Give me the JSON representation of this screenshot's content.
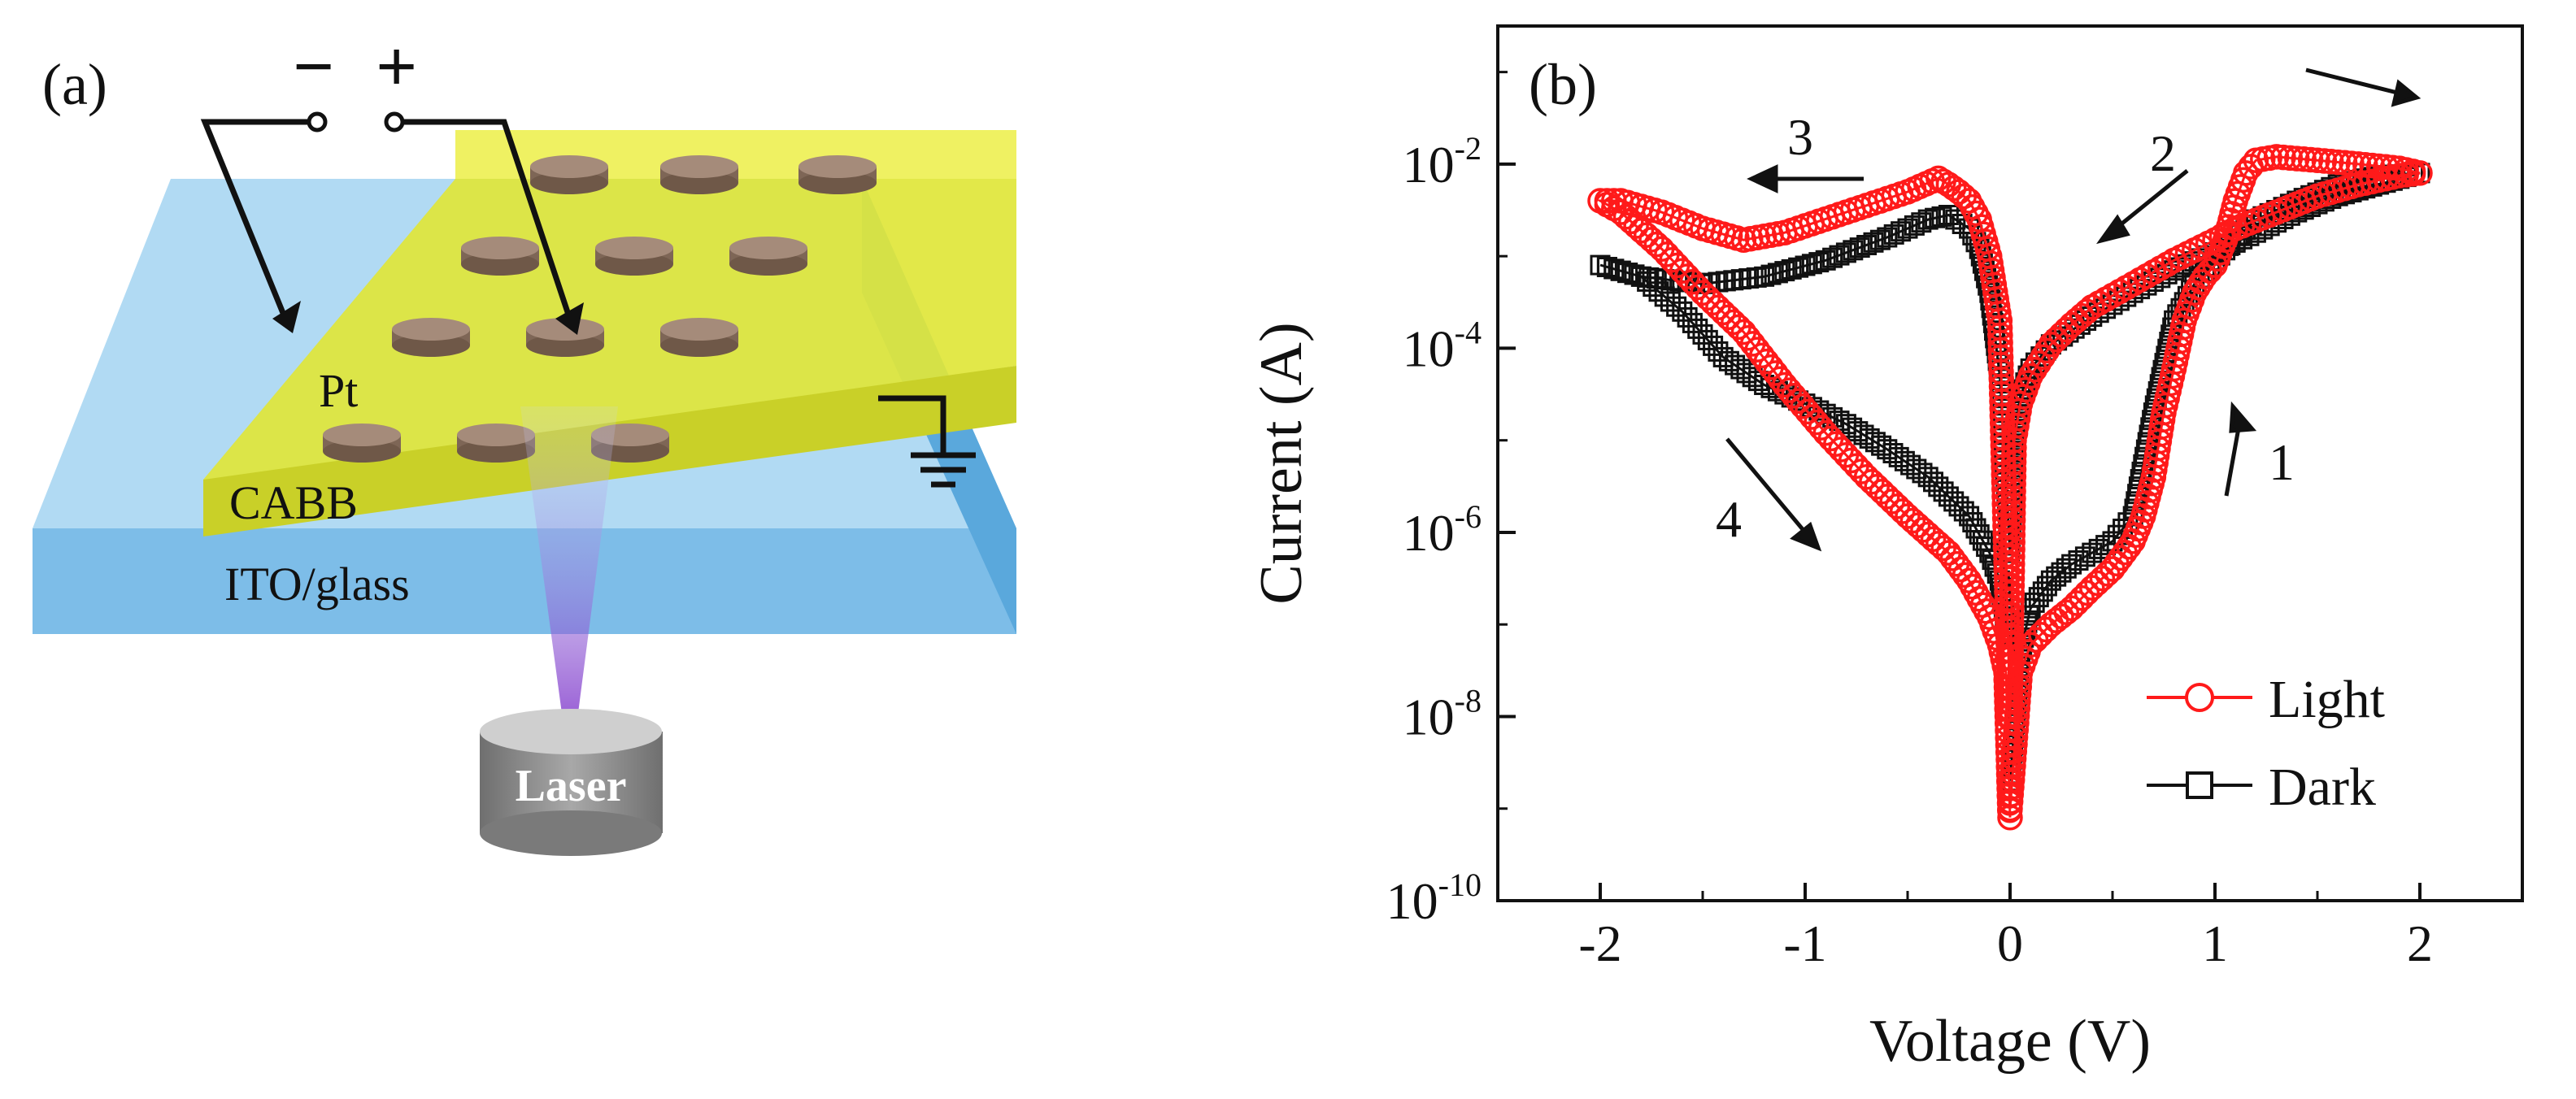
{
  "panel_a": {
    "label": "(a)",
    "minus_sign": "−",
    "plus_sign": "+",
    "electrode_label": "Pt",
    "film_label": "CABB",
    "substrate_label": "ITO/glass",
    "source_label": "Laser",
    "colors": {
      "substrate": "#8ec8ec",
      "film": "#e6ec3a",
      "electrode": "#9c8474",
      "laser_beam": "#7a2cc8",
      "laser_body": "#8a8a8a"
    }
  },
  "panel_b": {
    "label": "(b)",
    "arrow_labels": [
      "1",
      "2",
      "3",
      "4"
    ]
  },
  "chart_data": {
    "type": "line",
    "title": "",
    "xlabel": "Voltage (V)",
    "ylabel": "Current (A)",
    "xlim": [
      -2.5,
      2.5
    ],
    "ylim_log10": [
      -10,
      -0.5
    ],
    "y_scale": "log",
    "x_ticks": [
      -2,
      -1,
      0,
      1,
      2
    ],
    "x_tick_labels": [
      "-2",
      "-1",
      "0",
      "1",
      "2"
    ],
    "y_ticks_exp": [
      -10,
      -8,
      -6,
      -4,
      -2
    ],
    "y_tick_base": "10",
    "y_tick_exps": [
      "-10",
      "-8",
      "-6",
      "-4",
      "-2"
    ],
    "grid": false,
    "legend_position": "bottom-right",
    "series": [
      {
        "name": "Light",
        "color": "#ff1a1a",
        "marker": "circle",
        "x": [
          0,
          0.05,
          0.1,
          0.2,
          0.3,
          0.4,
          0.5,
          0.6,
          0.65,
          0.7,
          0.75,
          0.8,
          0.85,
          0.9,
          0.95,
          1.0,
          1.05,
          1.1,
          1.15,
          1.2,
          1.3,
          1.5,
          1.7,
          1.9,
          2.0,
          1.9,
          1.7,
          1.5,
          1.3,
          1.1,
          1.0,
          0.8,
          0.6,
          0.4,
          0.3,
          0.2,
          0.1,
          0.05,
          0.02,
          0.0,
          -0.05,
          -0.1,
          -0.15,
          -0.2,
          -0.25,
          -0.3,
          -0.35,
          -0.5,
          -0.8,
          -1.1,
          -1.3,
          -1.5,
          -1.7,
          -1.9,
          -2.0,
          -1.9,
          -1.7,
          -1.5,
          -1.3,
          -1.1,
          -0.9,
          -0.7,
          -0.5,
          -0.3,
          -0.2,
          -0.1,
          -0.05,
          -0.02,
          0.0
        ],
        "y": [
          1e-09,
          3e-08,
          6e-08,
          1e-07,
          1.5e-07,
          2.5e-07,
          4e-07,
          8e-07,
          1.5e-06,
          4e-06,
          2e-05,
          6e-05,
          0.0002,
          0.0004,
          0.0006,
          0.0008,
          0.0015,
          0.004,
          0.008,
          0.011,
          0.012,
          0.011,
          0.01,
          0.009,
          0.008,
          0.0075,
          0.006,
          0.0045,
          0.003,
          0.002,
          0.0015,
          0.0009,
          0.0005,
          0.00028,
          0.00018,
          0.00011,
          5e-05,
          2.5e-05,
          1e-05,
          1e-08,
          0.0002,
          0.001,
          0.0025,
          0.004,
          0.005,
          0.006,
          0.007,
          0.005,
          0.003,
          0.0018,
          0.0015,
          0.002,
          0.003,
          0.004,
          0.004,
          0.003,
          0.0012,
          0.0004,
          0.00015,
          4e-05,
          1.2e-05,
          4e-06,
          1.5e-06,
          6e-07,
          3e-07,
          1.2e-07,
          6e-08,
          3e-08,
          8e-10
        ]
      },
      {
        "name": "Dark",
        "color": "#111111",
        "marker": "square",
        "x": [
          0,
          0.05,
          0.1,
          0.2,
          0.3,
          0.4,
          0.5,
          0.6,
          0.7,
          0.8,
          0.9,
          1.0,
          1.2,
          1.4,
          1.6,
          1.8,
          2.0,
          1.8,
          1.6,
          1.4,
          1.2,
          1.0,
          0.8,
          0.6,
          0.4,
          0.2,
          0.1,
          0.05,
          0.02,
          0.0,
          -0.05,
          -0.1,
          -0.15,
          -0.2,
          -0.3,
          -0.4,
          -0.6,
          -0.9,
          -1.2,
          -1.5,
          -1.8,
          -2.0,
          -1.8,
          -1.6,
          -1.4,
          -1.2,
          -1.0,
          -0.8,
          -0.6,
          -0.4,
          -0.2,
          -0.1,
          -0.05,
          0.0
        ],
        "y": [
          2e-09,
          5e-08,
          1.5e-07,
          3e-07,
          4.5e-07,
          6e-07,
          8e-07,
          1.5e-06,
          2e-05,
          0.0002,
          0.0005,
          0.0009,
          0.0025,
          0.004,
          0.006,
          0.0075,
          0.008,
          0.006,
          0.0045,
          0.003,
          0.0018,
          0.0011,
          0.0007,
          0.0004,
          0.00022,
          0.00011,
          6e-05,
          3e-05,
          1e-05,
          6e-07,
          5e-05,
          0.0004,
          0.0012,
          0.002,
          0.0028,
          0.0025,
          0.0016,
          0.0009,
          0.0006,
          0.0005,
          0.0006,
          0.0008,
          0.0006,
          0.00025,
          8e-05,
          4e-05,
          2.5e-05,
          1.5e-05,
          8e-06,
          4e-06,
          1.5e-06,
          6e-07,
          3e-07,
          5e-08
        ]
      }
    ]
  }
}
